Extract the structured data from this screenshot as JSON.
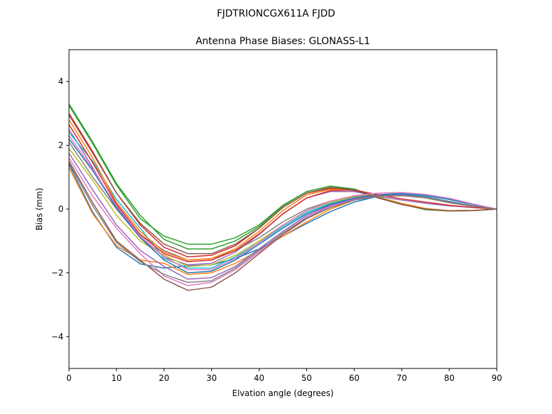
{
  "figure": {
    "suptitle": "FJDTRIONCGX611A FJDD"
  },
  "chart_data": {
    "type": "line",
    "title": "Antenna Phase Biases: GLONASS-L1",
    "xlabel": "Elvation angle (degrees)",
    "ylabel": "Bias (mm)",
    "xlim": [
      0,
      90
    ],
    "ylim": [
      -5,
      5
    ],
    "xticks": [
      0,
      10,
      20,
      30,
      40,
      50,
      60,
      70,
      80,
      90
    ],
    "yticks": [
      -4,
      -2,
      0,
      2,
      4
    ],
    "xtick_labels": [
      "0",
      "10",
      "20",
      "30",
      "40",
      "50",
      "60",
      "70",
      "80",
      "90"
    ],
    "ytick_labels": [
      "−4",
      "−2",
      "0",
      "2",
      "4"
    ],
    "grid": false,
    "legend": "none",
    "x": [
      0,
      5,
      10,
      15,
      20,
      25,
      30,
      35,
      40,
      45,
      50,
      55,
      60,
      65,
      70,
      75,
      80,
      85,
      90
    ],
    "colors": [
      "#1f77b4",
      "#ff7f0e",
      "#2ca02c",
      "#d62728",
      "#9467bd",
      "#8c564b",
      "#e377c2",
      "#7f7f7f",
      "#bcbd22",
      "#17becf"
    ],
    "series": [
      {
        "values": [
          1.4,
          -0.1,
          -1.2,
          -1.72,
          -1.85,
          -1.78,
          -1.75,
          -1.55,
          -1.25,
          -0.85,
          -0.45,
          -0.08,
          0.22,
          0.4,
          0.45,
          0.38,
          0.24,
          0.1,
          0.0
        ]
      },
      {
        "values": [
          1.3,
          -0.15,
          -1.15,
          -1.6,
          -1.7,
          -2.05,
          -2.0,
          -1.7,
          -1.3,
          -0.85,
          -0.4,
          0.0,
          0.28,
          0.42,
          0.44,
          0.36,
          0.22,
          0.08,
          0.0
        ]
      },
      {
        "values": [
          3.3,
          2.1,
          0.8,
          -0.2,
          -0.95,
          -1.25,
          -1.25,
          -1.0,
          -0.55,
          0.1,
          0.55,
          0.72,
          0.62,
          0.35,
          0.15,
          0.0,
          -0.05,
          -0.04,
          0.0
        ]
      },
      {
        "values": [
          3.0,
          1.8,
          0.5,
          -0.5,
          -1.2,
          -1.5,
          -1.45,
          -1.15,
          -0.6,
          0.05,
          0.5,
          0.65,
          0.58,
          0.35,
          0.15,
          0.0,
          -0.06,
          -0.05,
          0.0
        ]
      },
      {
        "values": [
          2.5,
          1.3,
          0.0,
          -0.9,
          -1.5,
          -1.75,
          -1.7,
          -1.35,
          -0.8,
          -0.15,
          0.35,
          0.55,
          0.55,
          0.4,
          0.28,
          0.18,
          0.1,
          0.05,
          0.0
        ]
      },
      {
        "values": [
          1.5,
          0.2,
          -1.0,
          -1.6,
          -2.2,
          -2.55,
          -2.45,
          -2.0,
          -1.4,
          -0.8,
          -0.3,
          0.05,
          0.28,
          0.4,
          0.42,
          0.35,
          0.2,
          0.08,
          0.0
        ]
      },
      {
        "values": [
          1.6,
          0.4,
          -0.6,
          -1.4,
          -2.1,
          -2.4,
          -2.3,
          -1.9,
          -1.35,
          -0.75,
          -0.25,
          0.1,
          0.3,
          0.42,
          0.44,
          0.36,
          0.22,
          0.09,
          0.0
        ]
      },
      {
        "values": [
          2.1,
          1.0,
          0.0,
          -0.8,
          -1.3,
          -1.6,
          -1.55,
          -1.3,
          -0.9,
          -0.4,
          0.0,
          0.25,
          0.4,
          0.45,
          0.44,
          0.36,
          0.22,
          0.09,
          0.0
        ]
      },
      {
        "values": [
          1.9,
          0.9,
          -0.2,
          -1.0,
          -1.45,
          -1.8,
          -1.75,
          -1.45,
          -1.0,
          -0.5,
          -0.05,
          0.22,
          0.38,
          0.44,
          0.43,
          0.35,
          0.22,
          0.09,
          0.0
        ]
      },
      {
        "values": [
          2.4,
          1.5,
          0.3,
          -0.6,
          -1.55,
          -1.85,
          -1.85,
          -1.5,
          -1.05,
          -0.55,
          -0.1,
          0.18,
          0.35,
          0.45,
          0.5,
          0.45,
          0.32,
          0.15,
          0.0
        ]
      },
      {
        "values": [
          2.2,
          1.2,
          0.05,
          -0.9,
          -1.6,
          -2.0,
          -1.95,
          -1.6,
          -1.1,
          -0.6,
          -0.15,
          0.15,
          0.35,
          0.45,
          0.48,
          0.42,
          0.3,
          0.14,
          0.0
        ]
      },
      {
        "values": [
          2.8,
          1.6,
          0.2,
          -0.7,
          -1.35,
          -1.6,
          -1.55,
          -1.25,
          -0.7,
          -0.05,
          0.45,
          0.62,
          0.6,
          0.38,
          0.18,
          0.02,
          -0.05,
          -0.04,
          0.0
        ]
      },
      {
        "values": [
          3.25,
          2.05,
          0.75,
          -0.3,
          -0.85,
          -1.1,
          -1.1,
          -0.9,
          -0.5,
          0.12,
          0.55,
          0.72,
          0.63,
          0.36,
          0.15,
          -0.02,
          -0.06,
          -0.05,
          0.0
        ]
      },
      {
        "values": [
          2.65,
          1.45,
          0.15,
          -0.8,
          -1.4,
          -1.65,
          -1.6,
          -1.3,
          -0.78,
          -0.15,
          0.35,
          0.58,
          0.6,
          0.45,
          0.32,
          0.22,
          0.12,
          0.05,
          0.0
        ]
      },
      {
        "values": [
          1.75,
          0.6,
          -0.5,
          -1.3,
          -1.8,
          -2.2,
          -2.15,
          -1.8,
          -1.25,
          -0.7,
          -0.2,
          0.12,
          0.32,
          0.42,
          0.44,
          0.36,
          0.22,
          0.09,
          0.0
        ]
      },
      {
        "values": [
          2.95,
          1.75,
          0.5,
          -0.45,
          -1.1,
          -1.4,
          -1.4,
          -1.1,
          -0.6,
          0.05,
          0.5,
          0.68,
          0.6,
          0.35,
          0.14,
          0.0,
          -0.06,
          -0.05,
          0.0
        ]
      },
      {
        "values": [
          2.3,
          1.25,
          0.1,
          -0.85,
          -1.5,
          -1.9,
          -1.9,
          -1.55,
          -1.05,
          -0.5,
          -0.05,
          0.25,
          0.42,
          0.5,
          0.52,
          0.46,
          0.34,
          0.16,
          0.0
        ]
      },
      {
        "values": [
          1.45,
          0.1,
          -1.05,
          -1.65,
          -2.05,
          -2.3,
          -2.25,
          -1.85,
          -1.3,
          -0.75,
          -0.28,
          0.06,
          0.28,
          0.4,
          0.43,
          0.36,
          0.22,
          0.09,
          0.0
        ]
      }
    ]
  }
}
